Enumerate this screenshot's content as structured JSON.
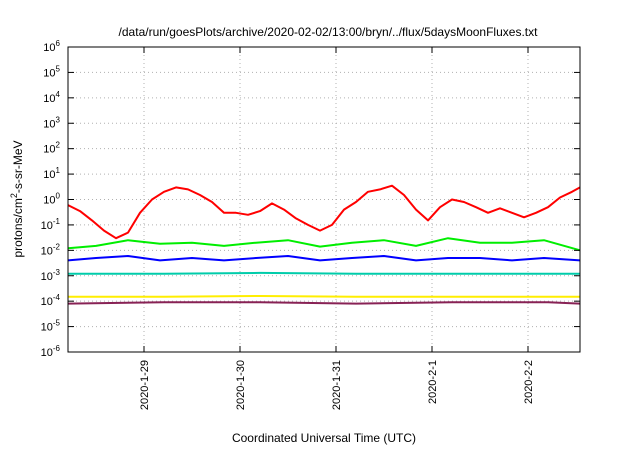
{
  "chart_data": {
    "type": "line",
    "title": "/data/run/goesPlots/archive/2020-02-02/13:00/bryn/../flux/5daysMoonFluxes.txt",
    "xlabel": "Coordinated Universal Time (UTC)",
    "ylabel": {
      "pre": "protons/cm",
      "sup": "2",
      "post": "-s-sr-MeV"
    },
    "yscale": "log",
    "ylim_exp": [
      -6,
      6
    ],
    "y_ticks": [
      {
        "base": "10",
        "exp": "-6"
      },
      {
        "base": "10",
        "exp": "-5"
      },
      {
        "base": "10",
        "exp": "-4"
      },
      {
        "base": "10",
        "exp": "-3"
      },
      {
        "base": "10",
        "exp": "-2"
      },
      {
        "base": "10",
        "exp": "-1"
      },
      {
        "base": "10",
        "exp": "0"
      },
      {
        "base": "10",
        "exp": "1"
      },
      {
        "base": "10",
        "exp": "2"
      },
      {
        "base": "10",
        "exp": "3"
      },
      {
        "base": "10",
        "exp": "4"
      },
      {
        "base": "10",
        "exp": "5"
      },
      {
        "base": "10",
        "exp": "6"
      }
    ],
    "x_range_days": [
      "2020-01-28 05:00",
      "2020-02-02 13:00"
    ],
    "x_ticks": [
      "2020-1-29",
      "2020-1-30",
      "2020-1-31",
      "2020-2-1",
      "2020-2-2"
    ],
    "grid": true,
    "series": [
      {
        "color": "#ff0000",
        "x": [
          "2020-01-28 05:00",
          "2020-01-28 08:00",
          "2020-01-28 11:00",
          "2020-01-28 14:00",
          "2020-01-28 17:00",
          "2020-01-28 20:00",
          "2020-01-28 23:00",
          "2020-01-29 02:00",
          "2020-01-29 05:00",
          "2020-01-29 08:00",
          "2020-01-29 11:00",
          "2020-01-29 14:00",
          "2020-01-29 17:00",
          "2020-01-29 20:00",
          "2020-01-29 23:00",
          "2020-01-30 02:00",
          "2020-01-30 05:00",
          "2020-01-30 08:00",
          "2020-01-30 11:00",
          "2020-01-30 14:00",
          "2020-01-30 17:00",
          "2020-01-30 20:00",
          "2020-01-30 23:00",
          "2020-01-31 02:00",
          "2020-01-31 05:00",
          "2020-01-31 08:00",
          "2020-01-31 11:00",
          "2020-01-31 14:00",
          "2020-01-31 17:00",
          "2020-01-31 20:00",
          "2020-01-31 23:00",
          "2020-02-01 02:00",
          "2020-02-01 05:00",
          "2020-02-01 08:00",
          "2020-02-01 11:00",
          "2020-02-01 14:00",
          "2020-02-01 17:00",
          "2020-02-01 20:00",
          "2020-02-01 23:00",
          "2020-02-02 02:00",
          "2020-02-02 05:00",
          "2020-02-02 08:00",
          "2020-02-02 11:00",
          "2020-02-02 13:00"
        ],
        "y": [
          0.6,
          0.35,
          0.15,
          0.06,
          0.03,
          0.05,
          0.3,
          1.0,
          2.0,
          3.0,
          2.5,
          1.5,
          0.8,
          0.3,
          0.3,
          0.25,
          0.35,
          0.7,
          0.4,
          0.18,
          0.1,
          0.06,
          0.1,
          0.4,
          0.8,
          2.0,
          2.5,
          3.5,
          1.5,
          0.4,
          0.15,
          0.5,
          1.0,
          0.8,
          0.5,
          0.3,
          0.45,
          0.3,
          0.2,
          0.3,
          0.5,
          1.2,
          2.0,
          3.0
        ]
      },
      {
        "color": "#00ee00",
        "x": [
          "2020-01-28 05:00",
          "2020-01-28 12:00",
          "2020-01-28 20:00",
          "2020-01-29 04:00",
          "2020-01-29 12:00",
          "2020-01-29 20:00",
          "2020-01-30 04:00",
          "2020-01-30 12:00",
          "2020-01-30 20:00",
          "2020-01-31 04:00",
          "2020-01-31 12:00",
          "2020-01-31 20:00",
          "2020-02-01 04:00",
          "2020-02-01 12:00",
          "2020-02-01 20:00",
          "2020-02-02 04:00",
          "2020-02-02 13:00"
        ],
        "y": [
          0.012,
          0.015,
          0.025,
          0.018,
          0.02,
          0.015,
          0.02,
          0.025,
          0.014,
          0.02,
          0.025,
          0.015,
          0.03,
          0.02,
          0.02,
          0.025,
          0.01
        ]
      },
      {
        "color": "#0000ff",
        "x": [
          "2020-01-28 05:00",
          "2020-01-28 12:00",
          "2020-01-28 20:00",
          "2020-01-29 04:00",
          "2020-01-29 12:00",
          "2020-01-29 20:00",
          "2020-01-30 04:00",
          "2020-01-30 12:00",
          "2020-01-30 20:00",
          "2020-01-31 04:00",
          "2020-01-31 12:00",
          "2020-01-31 20:00",
          "2020-02-01 04:00",
          "2020-02-01 12:00",
          "2020-02-01 20:00",
          "2020-02-02 04:00",
          "2020-02-02 13:00"
        ],
        "y": [
          0.004,
          0.005,
          0.006,
          0.004,
          0.005,
          0.004,
          0.005,
          0.006,
          0.004,
          0.005,
          0.006,
          0.004,
          0.005,
          0.005,
          0.004,
          0.005,
          0.004
        ]
      },
      {
        "color": "#00ccaa",
        "x": [
          "2020-01-28 05:00",
          "2020-01-29 05:00",
          "2020-01-30 05:00",
          "2020-01-31 05:00",
          "2020-02-01 05:00",
          "2020-02-02 05:00",
          "2020-02-02 13:00"
        ],
        "y": [
          0.0012,
          0.0012,
          0.0013,
          0.0012,
          0.0012,
          0.0012,
          0.0012
        ]
      },
      {
        "color": "#ffee00",
        "x": [
          "2020-01-28 05:00",
          "2020-01-29 05:00",
          "2020-01-30 05:00",
          "2020-01-31 05:00",
          "2020-02-01 05:00",
          "2020-02-02 05:00",
          "2020-02-02 13:00"
        ],
        "y": [
          0.00015,
          0.00015,
          0.00016,
          0.00015,
          0.00015,
          0.00015,
          0.00015
        ]
      },
      {
        "color": "#882255",
        "x": [
          "2020-01-28 05:00",
          "2020-01-29 05:00",
          "2020-01-30 05:00",
          "2020-01-31 05:00",
          "2020-02-01 05:00",
          "2020-02-02 05:00",
          "2020-02-02 13:00"
        ],
        "y": [
          8e-05,
          9e-05,
          9e-05,
          8e-05,
          9e-05,
          9e-05,
          8e-05
        ]
      }
    ]
  }
}
